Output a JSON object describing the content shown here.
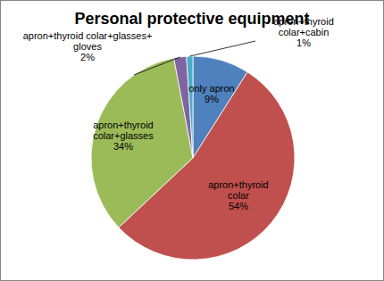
{
  "chart_data": {
    "type": "pie",
    "title": "Personal protective equipment",
    "categories": [
      "only apron",
      "apron+thyroid colar",
      "apron+thyroid colar+glasses",
      "apron+thyroid colar+glasses+ gloves",
      "apron+thyroid colar+cabin"
    ],
    "values": [
      9,
      54,
      34,
      2,
      1
    ],
    "value_labels": [
      "9%",
      "54%",
      "34%",
      "2%",
      "1%"
    ],
    "colors": [
      "#4f81bd",
      "#c0504d",
      "#9bbb59",
      "#8064a2",
      "#4bacc6"
    ],
    "data_labels": true
  }
}
